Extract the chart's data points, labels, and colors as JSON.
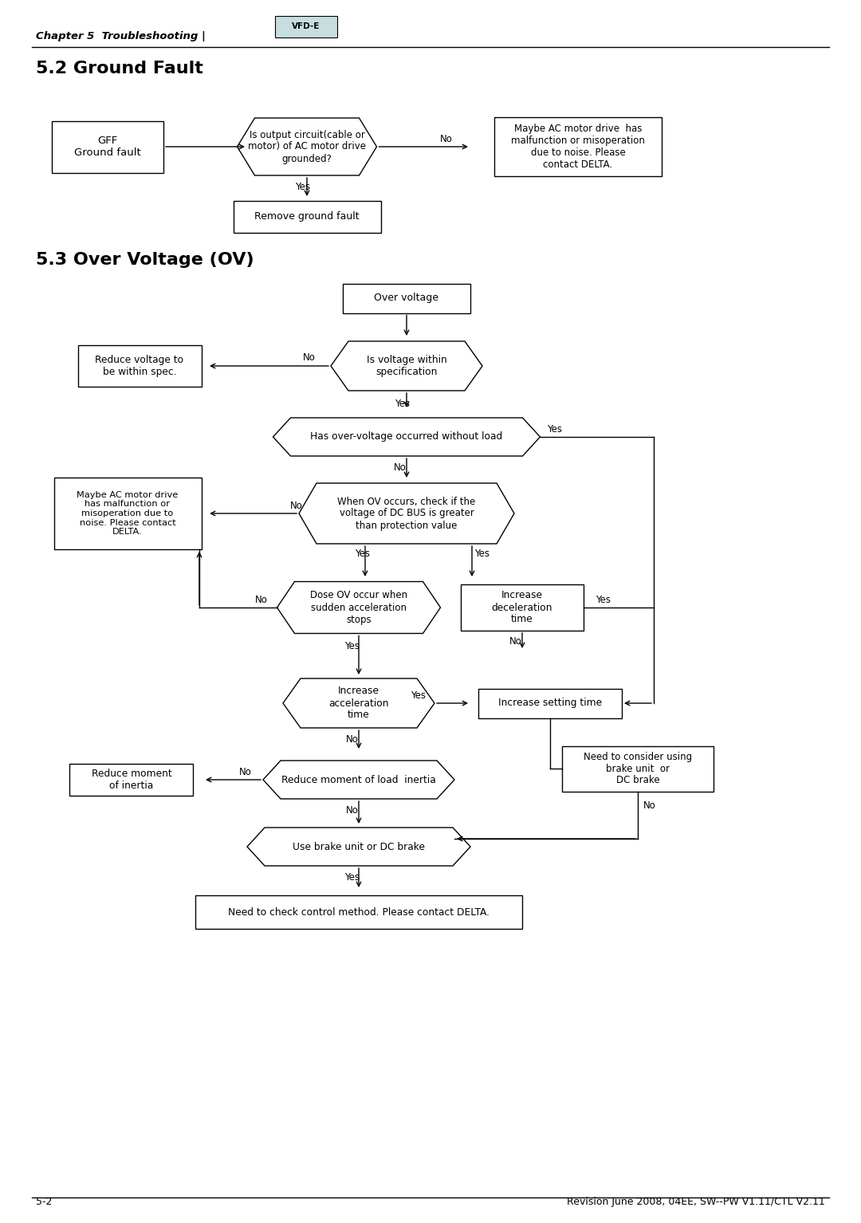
{
  "title_chapter": "Chapter 5  Troubleshooting |",
  "title_52": "5.2 Ground Fault",
  "title_53": "5.3 Over Voltage (OV)",
  "footer_left": "5-2",
  "footer_right": "Revision June 2008, 04EE, SW--PW V1.11/CTL V2.11",
  "bg_color": "#ffffff",
  "box_color": "#000000",
  "text_color": "#000000"
}
